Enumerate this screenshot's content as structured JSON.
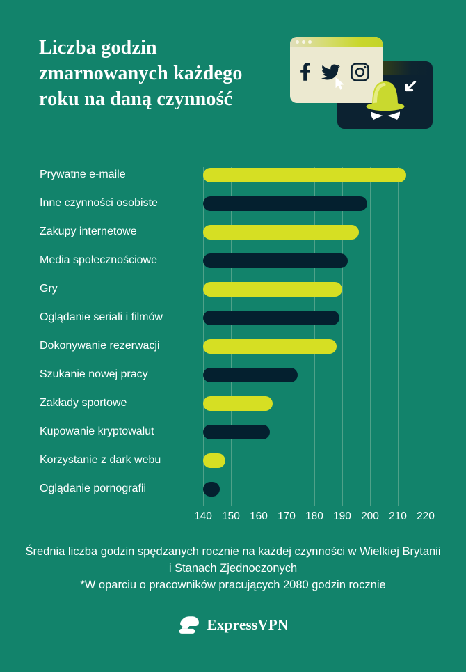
{
  "chart_data": {
    "type": "bar",
    "orientation": "horizontal",
    "title": "Liczba godzin zmarnowanych każdego roku na daną czynność",
    "categories": [
      "Prywatne e-maile",
      "Inne czynności osobiste",
      "Zakupy internetowe",
      "Media społecznościowe",
      "Gry",
      "Oglądanie seriali i filmów",
      "Dokonywanie rezerwacji",
      "Szukanie nowej pracy",
      "Zakłady sportowe",
      "Kupowanie kryptowalut",
      "Korzystanie z dark webu",
      "Oglądanie pornografii"
    ],
    "values": [
      213,
      199,
      196,
      192,
      190,
      189,
      188,
      174,
      165,
      164,
      148,
      146
    ],
    "x_ticks": [
      140,
      150,
      160,
      170,
      180,
      190,
      200,
      210,
      220
    ],
    "xlim": [
      140,
      220
    ],
    "grid": true,
    "legend_position": "none",
    "alternating_colors": [
      "#d6df23",
      "#04202f"
    ]
  },
  "footer": {
    "caption": "Średnia liczba godzin spędzanych rocznie na każdej czynności w Wielkiej Brytanii i Stanach Zjednoczonych",
    "footnote": "*W oparciu o pracowników pracujących 2080 godzin rocznie",
    "brand": "ExpressVPN"
  },
  "illustration": {
    "icons": [
      "facebook-icon",
      "twitter-icon",
      "instagram-icon",
      "pointer-cursor-icon",
      "arrow-cursor-icon",
      "spy-hat-icon",
      "window-dots"
    ]
  },
  "colors": {
    "background": "#12836b",
    "bar_lime": "#d6df23",
    "bar_navy": "#04202f",
    "gridline": "#4fa189",
    "text": "#ffffff",
    "window_cream": "#ece9d0",
    "window_navy": "#0c2231",
    "accent_lime": "#c9d92f"
  }
}
